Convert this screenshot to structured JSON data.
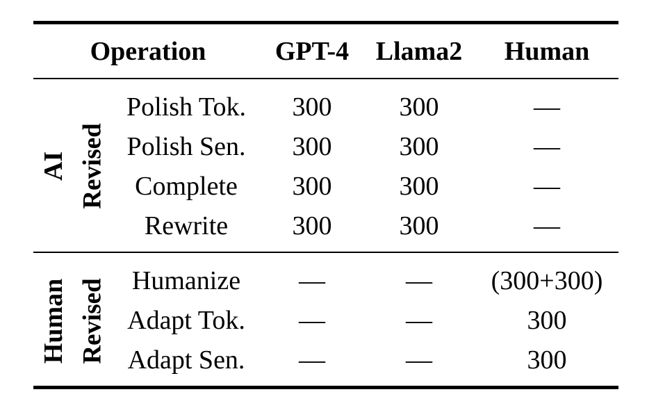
{
  "header": {
    "operation": "Operation",
    "gpt4": "GPT-4",
    "llama2": "Llama2",
    "human": "Human"
  },
  "groups": [
    {
      "main_label": "AI",
      "sub_label": "Revised",
      "rows": [
        {
          "operation": "Polish Tok.",
          "gpt4": "300",
          "llama2": "300",
          "human": "—"
        },
        {
          "operation": "Polish Sen.",
          "gpt4": "300",
          "llama2": "300",
          "human": "—"
        },
        {
          "operation": "Complete",
          "gpt4": "300",
          "llama2": "300",
          "human": "—"
        },
        {
          "operation": "Rewrite",
          "gpt4": "300",
          "llama2": "300",
          "human": "—"
        }
      ]
    },
    {
      "main_label": "Human",
      "sub_label": "Revised",
      "rows": [
        {
          "operation": "Humanize",
          "gpt4": "—",
          "llama2": "—",
          "human": "(300+300)"
        },
        {
          "operation": "Adapt Tok.",
          "gpt4": "—",
          "llama2": "—",
          "human": "300"
        },
        {
          "operation": "Adapt Sen.",
          "gpt4": "—",
          "llama2": "—",
          "human": "300"
        }
      ]
    }
  ]
}
